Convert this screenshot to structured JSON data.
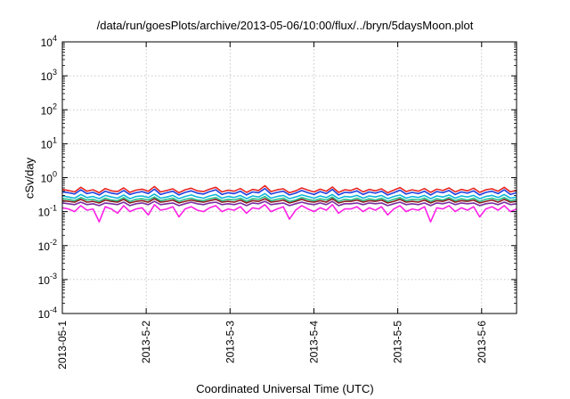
{
  "chart_data": {
    "type": "line",
    "title": "/data/run/goesPlots/archive/2013-05-06/10:00/flux/../bryn/5daysMoon.plot",
    "xlabel": "Coordinated Universal Time (UTC)",
    "ylabel": "cSv/day",
    "y_scale": "log",
    "ylim": [
      0.0001,
      10000
    ],
    "xlim": [
      "2013-05-01 00:00",
      "2013-05-06 10:00"
    ],
    "grid": true,
    "x_ticks": [
      "2013-05-1",
      "2013-5-2",
      "2013-5-3",
      "2013-5-4",
      "2013-5-5",
      "2013-5-6"
    ],
    "x_tick_dates": [
      "2013-05-01",
      "2013-05-02",
      "2013-05-03",
      "2013-05-04",
      "2013-05-05",
      "2013-05-06"
    ],
    "y_ticks": [
      {
        "value": 0.0001,
        "base": "10",
        "exp": "-4"
      },
      {
        "value": 0.001,
        "base": "10",
        "exp": "-3"
      },
      {
        "value": 0.01,
        "base": "10",
        "exp": "-2"
      },
      {
        "value": 0.1,
        "base": "10",
        "exp": "-1"
      },
      {
        "value": 1,
        "base": "10",
        "exp": "0"
      },
      {
        "value": 10,
        "base": "10",
        "exp": "1"
      },
      {
        "value": 100,
        "base": "10",
        "exp": "2"
      },
      {
        "value": 1000,
        "base": "10",
        "exp": "3"
      },
      {
        "value": 10000,
        "base": "10",
        "exp": "4"
      }
    ],
    "series": [
      {
        "color": "#e8231f",
        "values": [
          0.45,
          0.42,
          0.38,
          0.52,
          0.4,
          0.44,
          0.36,
          0.48,
          0.41,
          0.39,
          0.5,
          0.37,
          0.43,
          0.46,
          0.4,
          0.55,
          0.38,
          0.42,
          0.47,
          0.36,
          0.44,
          0.49,
          0.41,
          0.39,
          0.46,
          0.52,
          0.38,
          0.43,
          0.4,
          0.48,
          0.37,
          0.45,
          0.42,
          0.58,
          0.39,
          0.44,
          0.47,
          0.36,
          0.41,
          0.5,
          0.43,
          0.38,
          0.46,
          0.4,
          0.53,
          0.37,
          0.44,
          0.42,
          0.49,
          0.38,
          0.45,
          0.41,
          0.47,
          0.36,
          0.43,
          0.51,
          0.39,
          0.44,
          0.4,
          0.48,
          0.37,
          0.46,
          0.42,
          0.5,
          0.38,
          0.45,
          0.41,
          0.49,
          0.37,
          0.44,
          0.47,
          0.4,
          0.52,
          0.38,
          0.43
        ]
      },
      {
        "color": "#1f3fe0",
        "values": [
          0.38,
          0.36,
          0.33,
          0.44,
          0.34,
          0.37,
          0.31,
          0.4,
          0.35,
          0.33,
          0.42,
          0.32,
          0.36,
          0.39,
          0.34,
          0.46,
          0.32,
          0.36,
          0.4,
          0.31,
          0.37,
          0.41,
          0.35,
          0.33,
          0.39,
          0.44,
          0.32,
          0.36,
          0.34,
          0.4,
          0.31,
          0.38,
          0.36,
          0.48,
          0.33,
          0.37,
          0.4,
          0.31,
          0.35,
          0.42,
          0.36,
          0.32,
          0.39,
          0.34,
          0.45,
          0.31,
          0.37,
          0.36,
          0.41,
          0.32,
          0.38,
          0.35,
          0.4,
          0.31,
          0.36,
          0.43,
          0.33,
          0.37,
          0.34,
          0.4,
          0.31,
          0.39,
          0.36,
          0.42,
          0.32,
          0.38,
          0.35,
          0.41,
          0.31,
          0.37,
          0.4,
          0.34,
          0.44,
          0.32,
          0.36
        ]
      },
      {
        "color": "#10b5d8",
        "values": [
          0.29,
          0.27,
          0.25,
          0.32,
          0.26,
          0.28,
          0.24,
          0.3,
          0.27,
          0.25,
          0.31,
          0.24,
          0.28,
          0.29,
          0.26,
          0.33,
          0.25,
          0.27,
          0.3,
          0.24,
          0.28,
          0.31,
          0.27,
          0.25,
          0.29,
          0.32,
          0.25,
          0.28,
          0.26,
          0.3,
          0.24,
          0.29,
          0.27,
          0.34,
          0.25,
          0.28,
          0.3,
          0.24,
          0.27,
          0.31,
          0.28,
          0.25,
          0.29,
          0.26,
          0.32,
          0.24,
          0.28,
          0.27,
          0.3,
          0.25,
          0.29,
          0.27,
          0.3,
          0.24,
          0.28,
          0.31,
          0.25,
          0.28,
          0.26,
          0.3,
          0.24,
          0.29,
          0.27,
          0.31,
          0.25,
          0.29,
          0.27,
          0.3,
          0.24,
          0.28,
          0.3,
          0.26,
          0.32,
          0.25,
          0.27
        ]
      },
      {
        "color": "#26c08a",
        "values": [
          0.24,
          0.23,
          0.21,
          0.26,
          0.22,
          0.23,
          0.2,
          0.25,
          0.22,
          0.21,
          0.26,
          0.2,
          0.23,
          0.24,
          0.22,
          0.27,
          0.21,
          0.23,
          0.25,
          0.2,
          0.23,
          0.25,
          0.22,
          0.21,
          0.24,
          0.26,
          0.21,
          0.23,
          0.22,
          0.25,
          0.2,
          0.24,
          0.23,
          0.28,
          0.21,
          0.23,
          0.25,
          0.2,
          0.22,
          0.26,
          0.23,
          0.21,
          0.24,
          0.22,
          0.27,
          0.2,
          0.23,
          0.22,
          0.25,
          0.21,
          0.24,
          0.22,
          0.25,
          0.2,
          0.23,
          0.26,
          0.21,
          0.23,
          0.22,
          0.25,
          0.2,
          0.24,
          0.22,
          0.26,
          0.21,
          0.24,
          0.22,
          0.25,
          0.2,
          0.23,
          0.25,
          0.22,
          0.26,
          0.21,
          0.23
        ]
      },
      {
        "color": "#8b1a1a",
        "values": [
          0.21,
          0.2,
          0.19,
          0.23,
          0.19,
          0.2,
          0.18,
          0.22,
          0.2,
          0.19,
          0.23,
          0.18,
          0.2,
          0.21,
          0.19,
          0.24,
          0.19,
          0.2,
          0.22,
          0.18,
          0.2,
          0.22,
          0.2,
          0.19,
          0.21,
          0.23,
          0.19,
          0.2,
          0.19,
          0.22,
          0.18,
          0.21,
          0.2,
          0.24,
          0.19,
          0.2,
          0.22,
          0.18,
          0.2,
          0.23,
          0.2,
          0.19,
          0.21,
          0.19,
          0.24,
          0.18,
          0.2,
          0.2,
          0.22,
          0.19,
          0.21,
          0.2,
          0.22,
          0.18,
          0.2,
          0.23,
          0.19,
          0.2,
          0.19,
          0.22,
          0.18,
          0.21,
          0.2,
          0.23,
          0.19,
          0.21,
          0.2,
          0.22,
          0.18,
          0.2,
          0.22,
          0.19,
          0.23,
          0.19,
          0.2
        ]
      },
      {
        "color": "#7a2fa0",
        "values": [
          0.18,
          0.17,
          0.16,
          0.19,
          0.16,
          0.17,
          0.15,
          0.18,
          0.17,
          0.16,
          0.19,
          0.15,
          0.17,
          0.18,
          0.16,
          0.2,
          0.16,
          0.17,
          0.18,
          0.15,
          0.17,
          0.19,
          0.17,
          0.16,
          0.18,
          0.19,
          0.16,
          0.17,
          0.16,
          0.18,
          0.15,
          0.18,
          0.17,
          0.2,
          0.16,
          0.17,
          0.18,
          0.15,
          0.17,
          0.19,
          0.17,
          0.16,
          0.18,
          0.16,
          0.2,
          0.15,
          0.17,
          0.17,
          0.18,
          0.16,
          0.18,
          0.17,
          0.18,
          0.15,
          0.17,
          0.19,
          0.16,
          0.17,
          0.16,
          0.18,
          0.15,
          0.18,
          0.17,
          0.19,
          0.16,
          0.18,
          0.17,
          0.18,
          0.15,
          0.17,
          0.18,
          0.16,
          0.19,
          0.16,
          0.17
        ]
      },
      {
        "color": "#ff1fe6",
        "values": [
          0.13,
          0.12,
          0.1,
          0.15,
          0.11,
          0.12,
          0.05,
          0.14,
          0.12,
          0.09,
          0.15,
          0.1,
          0.12,
          0.13,
          0.08,
          0.16,
          0.11,
          0.12,
          0.14,
          0.07,
          0.12,
          0.14,
          0.11,
          0.1,
          0.13,
          0.15,
          0.1,
          0.12,
          0.11,
          0.14,
          0.09,
          0.13,
          0.12,
          0.16,
          0.1,
          0.12,
          0.14,
          0.06,
          0.11,
          0.15,
          0.12,
          0.1,
          0.13,
          0.11,
          0.16,
          0.09,
          0.12,
          0.12,
          0.14,
          0.1,
          0.13,
          0.11,
          0.14,
          0.08,
          0.12,
          0.15,
          0.1,
          0.12,
          0.11,
          0.14,
          0.05,
          0.13,
          0.12,
          0.15,
          0.1,
          0.13,
          0.11,
          0.14,
          0.07,
          0.12,
          0.14,
          0.11,
          0.15,
          0.1,
          0.12
        ]
      }
    ]
  }
}
